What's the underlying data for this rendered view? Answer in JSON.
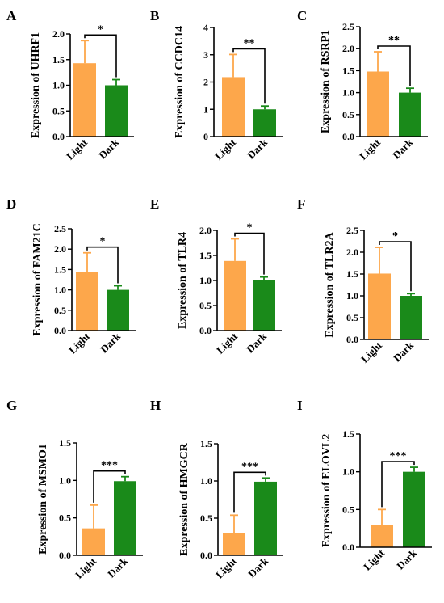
{
  "colors": {
    "light": "#FDA74B",
    "dark": "#1A8A1A",
    "axis": "#000000"
  },
  "chart_data": [
    {
      "panel": "A",
      "type": "bar",
      "categories": [
        "Light",
        "Dark"
      ],
      "values": [
        1.43,
        1.0
      ],
      "errors": [
        0.44,
        0.11
      ],
      "ylabel": "Expression of UHRF1",
      "ylim": [
        0,
        2.0
      ],
      "yticks": [
        "0.0",
        "0.5",
        "1.0",
        "1.5",
        "2.0"
      ],
      "significance": "*"
    },
    {
      "panel": "B",
      "type": "bar",
      "categories": [
        "Light",
        "Dark"
      ],
      "values": [
        2.18,
        1.0
      ],
      "errors": [
        0.83,
        0.12
      ],
      "ylabel": "Expression of CCDC14",
      "ylim": [
        0,
        4
      ],
      "yticks": [
        "0",
        "1",
        "2",
        "3",
        "4"
      ],
      "significance": "**"
    },
    {
      "panel": "C",
      "type": "bar",
      "categories": [
        "Light",
        "Dark"
      ],
      "values": [
        1.48,
        1.0
      ],
      "errors": [
        0.45,
        0.1
      ],
      "ylabel": "Expression of RSRP1",
      "ylim": [
        0,
        2.5
      ],
      "yticks": [
        "0.0",
        "0.5",
        "1.0",
        "1.5",
        "2.0",
        "2.5"
      ],
      "significance": "**"
    },
    {
      "panel": "D",
      "type": "bar",
      "categories": [
        "Light",
        "Dark"
      ],
      "values": [
        1.43,
        1.0
      ],
      "errors": [
        0.48,
        0.1
      ],
      "ylabel": "Expression of FAM21C",
      "ylim": [
        0,
        2.5
      ],
      "yticks": [
        "0.0",
        "0.5",
        "1.0",
        "1.5",
        "2.0",
        "2.5"
      ],
      "significance": "*"
    },
    {
      "panel": "E",
      "type": "bar",
      "categories": [
        "Light",
        "Dark"
      ],
      "values": [
        1.39,
        1.0
      ],
      "errors": [
        0.44,
        0.07
      ],
      "ylabel": "Expression of TLR4",
      "ylim": [
        0,
        2.0
      ],
      "yticks": [
        "0.0",
        "0.5",
        "1.0",
        "1.5",
        "2.0"
      ],
      "significance": "*"
    },
    {
      "panel": "F",
      "type": "bar",
      "categories": [
        "Light",
        "Dark"
      ],
      "values": [
        1.51,
        1.0
      ],
      "errors": [
        0.6,
        0.05
      ],
      "ylabel": "Expression of TLR2A",
      "ylim": [
        0,
        2.5
      ],
      "yticks": [
        "0.0",
        "0.5",
        "1.0",
        "1.5",
        "2.0",
        "2.5"
      ],
      "significance": "*"
    },
    {
      "panel": "G",
      "type": "bar",
      "categories": [
        "Light",
        "Dark"
      ],
      "values": [
        0.36,
        0.99
      ],
      "errors": [
        0.31,
        0.06
      ],
      "ylabel": "Expression of MSMO1",
      "ylim": [
        0,
        1.5
      ],
      "yticks": [
        "0.0",
        "0.5",
        "1.0",
        "1.5"
      ],
      "significance": "***"
    },
    {
      "panel": "H",
      "type": "bar",
      "categories": [
        "Light",
        "Dark"
      ],
      "values": [
        0.3,
        0.99
      ],
      "errors": [
        0.24,
        0.05
      ],
      "ylabel": "Expression of HMGCR",
      "ylim": [
        0,
        1.5
      ],
      "yticks": [
        "0.0",
        "0.5",
        "1.0",
        "1.5"
      ],
      "significance": "***"
    },
    {
      "panel": "I",
      "type": "bar",
      "categories": [
        "Light",
        "Dark"
      ],
      "values": [
        0.29,
        1.0
      ],
      "errors": [
        0.21,
        0.06
      ],
      "ylabel": "Expression of ELOVL2",
      "ylim": [
        0,
        1.5
      ],
      "yticks": [
        "0.0",
        "0.5",
        "1.0",
        "1.5"
      ],
      "significance": "***"
    }
  ]
}
